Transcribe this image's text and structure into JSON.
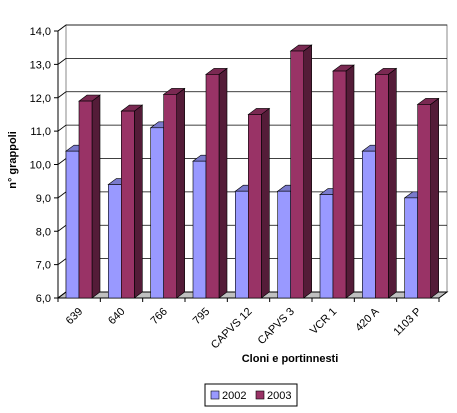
{
  "chart_data": {
    "type": "bar3d",
    "x_label": "Cloni e portinnesti",
    "y_label": "n° grappoli",
    "categories": [
      "639",
      "640",
      "766",
      "795",
      "CAPVS 12",
      "CAPVS 3",
      "VCR 1",
      "420 A",
      "1103 P"
    ],
    "series": [
      {
        "name": "2002",
        "color": "#9999ff",
        "values": [
          10.4,
          9.4,
          11.1,
          10.1,
          9.2,
          9.2,
          9.1,
          10.4,
          9.0
        ]
      },
      {
        "name": "2003",
        "color": "#993366",
        "values": [
          11.9,
          11.6,
          12.1,
          12.7,
          11.5,
          13.4,
          12.8,
          12.7,
          11.8
        ]
      }
    ],
    "ylim": [
      6,
      14
    ],
    "yticks": [
      {
        "value": 6,
        "label": "6,0"
      },
      {
        "value": 7,
        "label": "7,0"
      },
      {
        "value": 8,
        "label": "8,0"
      },
      {
        "value": 9,
        "label": "9,0"
      },
      {
        "value": 10,
        "label": "10,0"
      },
      {
        "value": 11,
        "label": "11,0"
      },
      {
        "value": 12,
        "label": "12,0"
      },
      {
        "value": 13,
        "label": "13,0"
      },
      {
        "value": 14,
        "label": "14,0"
      }
    ],
    "grid": true,
    "legend": "bottom"
  }
}
